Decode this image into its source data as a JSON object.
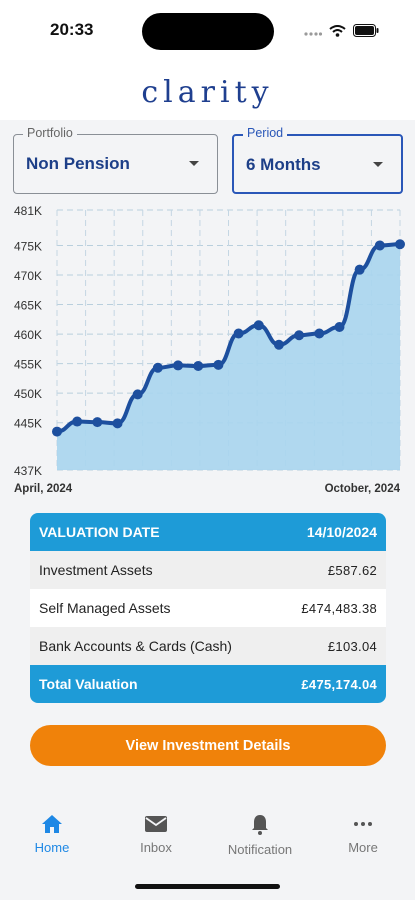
{
  "status": {
    "time": "20:33"
  },
  "brand": {
    "name": "clarity"
  },
  "filters": {
    "portfolio": {
      "label": "Portfolio",
      "value": "Non Pension"
    },
    "period": {
      "label": "Period",
      "value": "6 Months"
    }
  },
  "chart_data": {
    "type": "area",
    "y_ticks": [
      "481K",
      "475K",
      "470K",
      "465K",
      "460K",
      "455K",
      "450K",
      "445K",
      "437K"
    ],
    "x_labels": [
      "April, 2024",
      "October, 2024"
    ],
    "ylim": [
      437,
      481
    ],
    "values": [
      443.5,
      445.2,
      445.1,
      444.9,
      449.8,
      454.3,
      454.7,
      454.6,
      454.8,
      460.1,
      461.5,
      458.2,
      459.8,
      460.1,
      461.2,
      470.9,
      475.0,
      475.2
    ],
    "fill_color": "#a9d5ee",
    "line_color": "#1d4f9e",
    "grid": true
  },
  "valuation": {
    "header_label": "VALUATION DATE",
    "header_date": "14/10/2024",
    "rows": [
      {
        "label": "Investment Assets",
        "value": "£587.62"
      },
      {
        "label": "Self Managed Assets",
        "value": "£474,483.38"
      },
      {
        "label": "Bank Accounts & Cards (Cash)",
        "value": "£103.04"
      }
    ],
    "total_label": "Total Valuation",
    "total_value": "£475,174.04"
  },
  "cta": {
    "label": "View Investment Details"
  },
  "tabs": [
    {
      "label": "Home",
      "icon": "home-icon",
      "active": true
    },
    {
      "label": "Inbox",
      "icon": "mail-icon",
      "active": false
    },
    {
      "label": "Notification",
      "icon": "bell-icon",
      "active": false
    },
    {
      "label": "More",
      "icon": "more-icon",
      "active": false
    }
  ],
  "colors": {
    "accent": "#1e9bd7",
    "brand": "#1f3f8f",
    "cta": "#f0820a",
    "active_tab": "#1e88e5"
  }
}
